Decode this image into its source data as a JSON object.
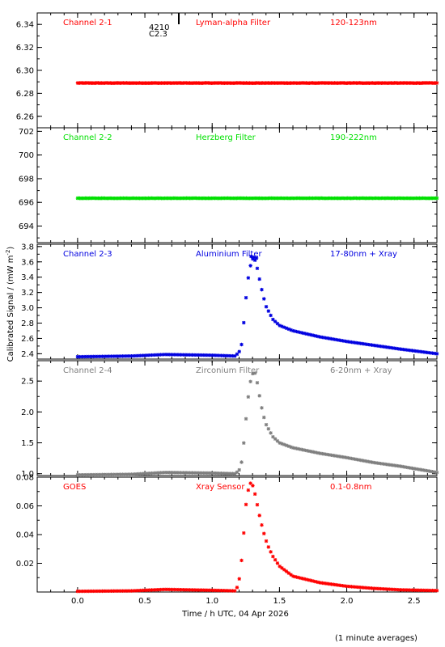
{
  "footer_note": "(1 minute averages)",
  "xaxis": {
    "label": "Time / h UTC, 04 Apr 2026",
    "range": [
      -0.3,
      2.67
    ],
    "ticks": [
      0.0,
      0.5,
      1.0,
      1.5,
      2.0,
      2.5
    ],
    "tick_labels": [
      "0.0",
      "0.5",
      "1.0",
      "1.5",
      "2.0",
      "2.5"
    ]
  },
  "yaxis_label": "Calibrated Signal / (mW m",
  "yaxis_label_sup": "-2",
  "yaxis_label_tail": ")",
  "annotation": {
    "line1": "4210",
    "line2": "C2.3",
    "x": 0.68
  },
  "colors": {
    "red": "#ff0000",
    "green": "#00e000",
    "blue": "#0000e0",
    "grey": "#7f7f7f",
    "axis": "#000000"
  },
  "chart_data": [
    {
      "type": "scatter",
      "panel": "Channel 2-1",
      "channel_label": "Channel 2-1",
      "filter_label": "Lyman-alpha Filter",
      "band_label": "120-123nm",
      "color": "#ff0000",
      "ylim": [
        6.25,
        6.35
      ],
      "yticks": [
        6.26,
        6.28,
        6.3,
        6.32,
        6.34
      ],
      "ytick_labels": [
        "6.26",
        "6.28",
        "6.30",
        "6.32",
        "6.34"
      ],
      "series": [
        {
          "x_start": 0.0,
          "x_end": 2.67,
          "baseline": 6.289,
          "noise": 0.0003
        }
      ]
    },
    {
      "type": "scatter",
      "panel": "Channel 2-2",
      "channel_label": "Channel 2-2",
      "filter_label": "Herzberg Filter",
      "band_label": "190-222nm",
      "color": "#00e000",
      "ylim": [
        692.6,
        702.3
      ],
      "yticks": [
        694,
        696,
        698,
        700,
        702
      ],
      "ytick_labels": [
        "694",
        "696",
        "698",
        "700",
        "702"
      ],
      "series": [
        {
          "x_start": 0.0,
          "x_end": 2.67,
          "baseline": 696.35,
          "noise": 0.02
        }
      ]
    },
    {
      "type": "scatter",
      "panel": "Channel 2-3",
      "channel_label": "Channel 2-3",
      "filter_label": "Aluminium Filter",
      "band_label": "17-80nm + Xray",
      "color": "#0000e0",
      "ylim": [
        2.33,
        3.83
      ],
      "yticks": [
        2.4,
        2.6,
        2.8,
        3.0,
        3.2,
        3.4,
        3.6,
        3.8
      ],
      "ytick_labels": [
        "2.4",
        "2.6",
        "2.8",
        "3.0",
        "3.2",
        "3.4",
        "3.6",
        "3.8"
      ],
      "series": [
        {
          "x_start": 0.0,
          "x_end": 2.67,
          "profile": [
            [
              0.0,
              2.36
            ],
            [
              0.4,
              2.37
            ],
            [
              0.65,
              2.39
            ],
            [
              1.0,
              2.38
            ],
            [
              1.17,
              2.37
            ],
            [
              1.2,
              2.42
            ],
            [
              1.22,
              2.53
            ],
            [
              1.24,
              2.9
            ],
            [
              1.26,
              3.3
            ],
            [
              1.28,
              3.52
            ],
            [
              1.3,
              3.64
            ],
            [
              1.32,
              3.62
            ],
            [
              1.34,
              3.48
            ],
            [
              1.36,
              3.3
            ],
            [
              1.38,
              3.15
            ],
            [
              1.4,
              3.02
            ],
            [
              1.45,
              2.85
            ],
            [
              1.5,
              2.77
            ],
            [
              1.6,
              2.7
            ],
            [
              1.8,
              2.62
            ],
            [
              2.0,
              2.56
            ],
            [
              2.2,
              2.51
            ],
            [
              2.4,
              2.46
            ],
            [
              2.67,
              2.4
            ]
          ],
          "peak_points": [
            [
              1.29,
              3.67
            ],
            [
              1.31,
              3.66
            ],
            [
              1.33,
              3.65
            ]
          ]
        }
      ]
    },
    {
      "type": "scatter",
      "panel": "Channel 2-4",
      "channel_label": "Channel 2-4",
      "filter_label": "Zirconium Filter",
      "band_label": "6-20nm + Xray",
      "color": "#7f7f7f",
      "ylim": [
        0.97,
        2.83
      ],
      "yticks": [
        1.0,
        1.5,
        2.0,
        2.5
      ],
      "ytick_labels": [
        "1.0",
        "1.5",
        "2.0",
        "2.5"
      ],
      "series": [
        {
          "x_start": 0.0,
          "x_end": 2.67,
          "profile": [
            [
              0.0,
              0.98
            ],
            [
              0.4,
              0.99
            ],
            [
              0.65,
              1.02
            ],
            [
              1.0,
              1.01
            ],
            [
              1.17,
              1.0
            ],
            [
              1.2,
              1.05
            ],
            [
              1.22,
              1.2
            ],
            [
              1.24,
              1.6
            ],
            [
              1.26,
              2.1
            ],
            [
              1.28,
              2.45
            ],
            [
              1.3,
              2.62
            ],
            [
              1.32,
              2.63
            ],
            [
              1.34,
              2.42
            ],
            [
              1.36,
              2.15
            ],
            [
              1.38,
              1.95
            ],
            [
              1.4,
              1.8
            ],
            [
              1.45,
              1.6
            ],
            [
              1.5,
              1.5
            ],
            [
              1.6,
              1.42
            ],
            [
              1.8,
              1.33
            ],
            [
              2.0,
              1.26
            ],
            [
              2.2,
              1.18
            ],
            [
              2.4,
              1.12
            ],
            [
              2.67,
              1.02
            ]
          ]
        }
      ]
    },
    {
      "type": "scatter",
      "panel": "GOES",
      "channel_label": "GOES",
      "filter_label": "Xray Sensor",
      "band_label": "0.1-0.8nm",
      "color": "#ff0000",
      "ylim": [
        0.0,
        0.08
      ],
      "yticks": [
        0.02,
        0.04,
        0.06,
        0.08
      ],
      "ytick_labels": [
        "0.02",
        "0.04",
        "0.06",
        "0.08"
      ],
      "series": [
        {
          "x_start": 0.0,
          "x_end": 2.67,
          "profile": [
            [
              0.0,
              0.0005
            ],
            [
              0.4,
              0.0008
            ],
            [
              0.65,
              0.0018
            ],
            [
              1.0,
              0.0012
            ],
            [
              1.17,
              0.0008
            ],
            [
              1.19,
              0.004
            ],
            [
              1.21,
              0.013
            ],
            [
              1.23,
              0.035
            ],
            [
              1.25,
              0.06
            ],
            [
              1.27,
              0.072
            ],
            [
              1.29,
              0.077
            ],
            [
              1.31,
              0.072
            ],
            [
              1.33,
              0.063
            ],
            [
              1.35,
              0.054
            ],
            [
              1.37,
              0.046
            ],
            [
              1.39,
              0.039
            ],
            [
              1.41,
              0.033
            ],
            [
              1.45,
              0.025
            ],
            [
              1.5,
              0.018
            ],
            [
              1.6,
              0.011
            ],
            [
              1.8,
              0.0065
            ],
            [
              2.0,
              0.004
            ],
            [
              2.2,
              0.0025
            ],
            [
              2.4,
              0.0015
            ],
            [
              2.67,
              0.001
            ]
          ]
        }
      ]
    }
  ]
}
